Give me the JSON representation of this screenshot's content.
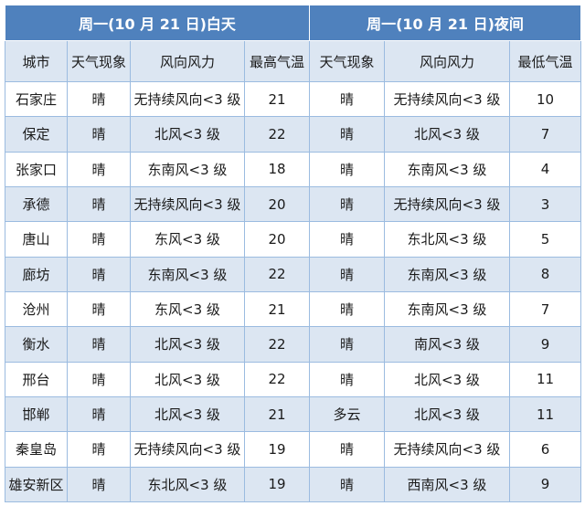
{
  "table": {
    "titles": [
      "周一(10 月 21 日)白天",
      "周一(10 月 21 日)夜间"
    ],
    "columns": [
      "城市",
      "天气现象",
      "风向风力",
      "最高气温",
      "天气现象",
      "风向风力",
      "最低气温"
    ],
    "rows": [
      [
        "石家庄",
        "晴",
        "无持续风向<3 级",
        21,
        "晴",
        "无持续风向<3 级",
        10
      ],
      [
        "保定",
        "晴",
        "北风<3 级",
        22,
        "晴",
        "北风<3 级",
        7
      ],
      [
        "张家口",
        "晴",
        "东南风<3 级",
        18,
        "晴",
        "东南风<3 级",
        4
      ],
      [
        "承德",
        "晴",
        "无持续风向<3 级",
        20,
        "晴",
        "无持续风向<3 级",
        3
      ],
      [
        "唐山",
        "晴",
        "东风<3 级",
        20,
        "晴",
        "东北风<3 级",
        5
      ],
      [
        "廊坊",
        "晴",
        "东南风<3 级",
        22,
        "晴",
        "东南风<3 级",
        8
      ],
      [
        "沧州",
        "晴",
        "东风<3 级",
        21,
        "晴",
        "东南风<3 级",
        7
      ],
      [
        "衡水",
        "晴",
        "北风<3 级",
        22,
        "晴",
        "南风<3 级",
        9
      ],
      [
        "邢台",
        "晴",
        "北风<3 级",
        22,
        "晴",
        "北风<3 级",
        11
      ],
      [
        "邯郸",
        "晴",
        "北风<3 级",
        21,
        "多云",
        "北风<3 级",
        11
      ],
      [
        "秦皇岛",
        "晴",
        "无持续风向<3 级",
        19,
        "晴",
        "无持续风向<3 级",
        6
      ],
      [
        "雄安新区",
        "晴",
        "东北风<3 级",
        19,
        "晴",
        "西南风<3 级",
        9
      ]
    ]
  }
}
